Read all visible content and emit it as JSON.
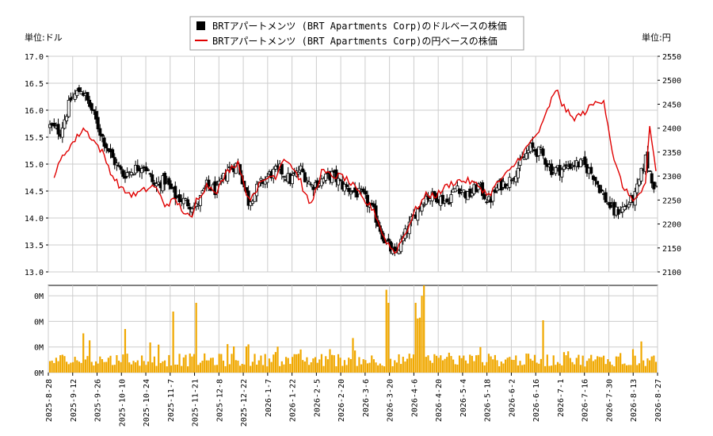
{
  "chart_data": {
    "type": "candlestick+line+bar",
    "legend": {
      "placement": "top-center",
      "entries": [
        {
          "label": "BRTアパートメンツ (BRT Apartments Corp)のドルベースの株価",
          "color": "#000000",
          "marker": "square"
        },
        {
          "label": "BRTアパートメンツ (BRT Apartments Corp)の円ベースの株価",
          "color": "#e00000",
          "marker": "line"
        }
      ]
    },
    "left_unit": "単位:ドル",
    "right_unit": "単位:円",
    "price_axis_left": {
      "min": 13.0,
      "max": 17.0,
      "ticks": [
        "13.0",
        "13.5",
        "14.0",
        "14.5",
        "15.0",
        "15.5",
        "16.0",
        "16.5",
        "17.0"
      ]
    },
    "price_axis_right": {
      "min": 2100,
      "max": 2550,
      "ticks": [
        "2100",
        "2150",
        "2200",
        "2250",
        "2300",
        "2350",
        "2400",
        "2450",
        "2500",
        "2550"
      ]
    },
    "volume_axis": {
      "ticks": [
        "0M",
        "0M",
        "0M",
        "0M"
      ]
    },
    "x_ticks": [
      "2025-8-28",
      "2025-9-12",
      "2025-9-26",
      "2025-10-10",
      "2025-10-24",
      "2025-11-7",
      "2025-11-21",
      "2025-12-8",
      "2025-12-22",
      "2026-1-7",
      "2026-1-22",
      "2026-2-5",
      "2026-2-20",
      "2026-3-6",
      "2026-3-20",
      "2026-4-6",
      "2026-4-20",
      "2026-5-4",
      "2026-5-18",
      "2026-6-2",
      "2026-6-16",
      "2026-7-1",
      "2026-7-16",
      "2026-7-30",
      "2026-8-13",
      "2026-8-27"
    ],
    "grid": true,
    "usd_close_anchors": [
      [
        0,
        15.7
      ],
      [
        5,
        15.6
      ],
      [
        10,
        16.2
      ],
      [
        15,
        16.4
      ],
      [
        20,
        16.0
      ],
      [
        25,
        15.5
      ],
      [
        30,
        15.1
      ],
      [
        35,
        14.8
      ],
      [
        40,
        14.9
      ],
      [
        45,
        15.0
      ],
      [
        50,
        14.6
      ],
      [
        55,
        14.7
      ],
      [
        60,
        14.4
      ],
      [
        65,
        14.3
      ],
      [
        70,
        14.2
      ],
      [
        75,
        14.6
      ],
      [
        80,
        14.5
      ],
      [
        85,
        14.9
      ],
      [
        90,
        15.0
      ],
      [
        95,
        14.3
      ],
      [
        100,
        14.6
      ],
      [
        105,
        14.8
      ],
      [
        110,
        14.9
      ],
      [
        115,
        14.7
      ],
      [
        120,
        14.9
      ],
      [
        125,
        14.6
      ],
      [
        130,
        14.7
      ],
      [
        135,
        14.8
      ],
      [
        140,
        14.6
      ],
      [
        145,
        14.5
      ],
      [
        150,
        14.4
      ],
      [
        155,
        14.1
      ],
      [
        160,
        13.6
      ],
      [
        165,
        13.3
      ],
      [
        170,
        13.7
      ],
      [
        175,
        14.1
      ],
      [
        180,
        14.4
      ],
      [
        185,
        14.4
      ],
      [
        190,
        14.3
      ],
      [
        195,
        14.6
      ],
      [
        200,
        14.4
      ],
      [
        205,
        14.6
      ],
      [
        210,
        14.3
      ],
      [
        215,
        14.6
      ],
      [
        220,
        14.7
      ],
      [
        225,
        15.0
      ],
      [
        230,
        15.3
      ],
      [
        235,
        15.2
      ],
      [
        240,
        14.9
      ],
      [
        245,
        14.9
      ],
      [
        250,
        15.0
      ],
      [
        255,
        15.0
      ],
      [
        260,
        14.8
      ],
      [
        265,
        14.4
      ],
      [
        270,
        14.1
      ],
      [
        275,
        14.2
      ],
      [
        280,
        14.4
      ],
      [
        285,
        15.1
      ],
      [
        290,
        14.5
      ]
    ],
    "jpy_close_anchors": [
      [
        2,
        2300
      ],
      [
        6,
        2340
      ],
      [
        9,
        2360
      ],
      [
        12,
        2375
      ],
      [
        16,
        2400
      ],
      [
        20,
        2380
      ],
      [
        25,
        2350
      ],
      [
        30,
        2300
      ],
      [
        35,
        2270
      ],
      [
        40,
        2260
      ],
      [
        45,
        2270
      ],
      [
        50,
        2280
      ],
      [
        55,
        2240
      ],
      [
        60,
        2250
      ],
      [
        65,
        2220
      ],
      [
        68,
        2210
      ],
      [
        70,
        2250
      ],
      [
        75,
        2280
      ],
      [
        80,
        2270
      ],
      [
        85,
        2310
      ],
      [
        90,
        2330
      ],
      [
        95,
        2250
      ],
      [
        100,
        2280
      ],
      [
        105,
        2300
      ],
      [
        108,
        2300
      ],
      [
        112,
        2340
      ],
      [
        116,
        2320
      ],
      [
        120,
        2290
      ],
      [
        122,
        2260
      ],
      [
        125,
        2240
      ],
      [
        130,
        2310
      ],
      [
        135,
        2300
      ],
      [
        140,
        2300
      ],
      [
        145,
        2280
      ],
      [
        150,
        2250
      ],
      [
        155,
        2230
      ],
      [
        160,
        2170
      ],
      [
        165,
        2140
      ],
      [
        170,
        2180
      ],
      [
        175,
        2230
      ],
      [
        180,
        2260
      ],
      [
        185,
        2260
      ],
      [
        190,
        2280
      ],
      [
        195,
        2290
      ],
      [
        200,
        2290
      ],
      [
        205,
        2280
      ],
      [
        210,
        2260
      ],
      [
        215,
        2290
      ],
      [
        220,
        2310
      ],
      [
        225,
        2340
      ],
      [
        230,
        2370
      ],
      [
        235,
        2400
      ],
      [
        240,
        2460
      ],
      [
        243,
        2480
      ],
      [
        245,
        2450
      ],
      [
        250,
        2420
      ],
      [
        255,
        2430
      ],
      [
        260,
        2450
      ],
      [
        265,
        2460
      ],
      [
        270,
        2330
      ],
      [
        275,
        2270
      ],
      [
        280,
        2250
      ],
      [
        285,
        2280
      ],
      [
        287,
        2400
      ],
      [
        290,
        2310
      ]
    ],
    "volume_pattern": {
      "max_label": "0M",
      "spikes": [
        [
          16,
          0.45
        ],
        [
          36,
          0.5
        ],
        [
          59,
          0.7
        ],
        [
          70,
          0.8
        ],
        [
          88,
          0.3
        ],
        [
          94,
          0.3
        ],
        [
          161,
          0.95
        ],
        [
          162,
          0.8
        ],
        [
          175,
          0.8
        ],
        [
          176,
          0.62
        ],
        [
          177,
          0.63
        ],
        [
          178,
          0.88
        ],
        [
          179,
          1.0
        ],
        [
          236,
          0.6
        ]
      ]
    }
  }
}
